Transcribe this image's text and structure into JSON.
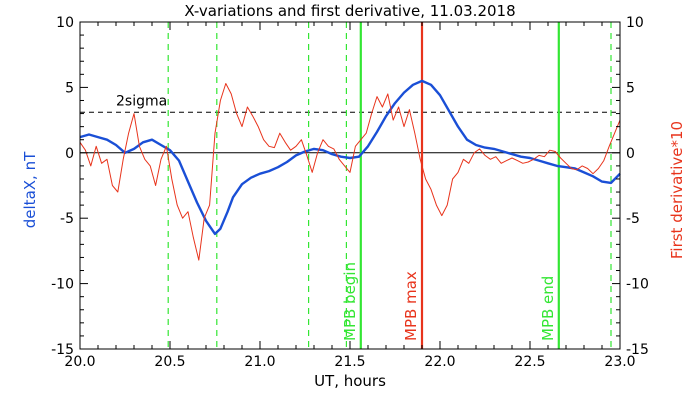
{
  "chart_data": {
    "type": "line",
    "title": "X-variations and first derivative, 11.03.2018",
    "xlabel": "UT, hours",
    "ylabel_left": "deltaX, nT",
    "ylabel_right": "First derivative*10",
    "xlim": [
      20.0,
      23.0
    ],
    "ylim": [
      -15,
      10
    ],
    "x_ticks": [
      20.0,
      20.5,
      21.0,
      21.5,
      22.0,
      22.5,
      23.0
    ],
    "x_tick_labels": [
      "20.0",
      "20.5",
      "21.0",
      "21.5",
      "22.0",
      "22.5",
      "23.0"
    ],
    "y_ticks": [
      10,
      5,
      0,
      -5,
      -10,
      -15
    ],
    "y_tick_labels": [
      "10",
      "5",
      "0",
      "-5",
      "-10",
      "-15"
    ],
    "grid": false,
    "colors": {
      "deltaX": "#1a4fd6",
      "derivative": "#e8341c",
      "green": "#33e633",
      "red": "#e8341c",
      "axes": "#000000"
    },
    "sigma_level": 3.1,
    "sigma_label": "2sigma",
    "vertical_markers": [
      {
        "x": 21.56,
        "label": "MPB begin",
        "color": "#33e633"
      },
      {
        "x": 21.9,
        "label": "MPB max",
        "color": "#e8341c"
      },
      {
        "x": 22.66,
        "label": "MPB end",
        "color": "#33e633"
      }
    ],
    "dashed_markers": [
      20.49,
      20.76,
      21.27,
      21.48,
      22.95
    ],
    "series": [
      {
        "key": "deltaX",
        "x": [
          20.0,
          20.05,
          20.1,
          20.15,
          20.2,
          20.25,
          20.3,
          20.35,
          20.4,
          20.45,
          20.5,
          20.55,
          20.6,
          20.65,
          20.7,
          20.75,
          20.78,
          20.82,
          20.85,
          20.9,
          20.95,
          21.0,
          21.05,
          21.1,
          21.15,
          21.2,
          21.25,
          21.3,
          21.35,
          21.4,
          21.45,
          21.5,
          21.55,
          21.6,
          21.65,
          21.7,
          21.75,
          21.8,
          21.85,
          21.9,
          21.95,
          22.0,
          22.05,
          22.1,
          22.15,
          22.2,
          22.25,
          22.3,
          22.35,
          22.4,
          22.45,
          22.5,
          22.55,
          22.6,
          22.65,
          22.7,
          22.75,
          22.8,
          22.85,
          22.9,
          22.95,
          23.0
        ],
        "values": [
          1.2,
          1.4,
          1.2,
          1.0,
          0.6,
          0.0,
          0.3,
          0.8,
          1.0,
          0.6,
          0.2,
          -0.6,
          -2.2,
          -3.8,
          -5.2,
          -6.2,
          -5.8,
          -4.5,
          -3.4,
          -2.4,
          -1.9,
          -1.6,
          -1.4,
          -1.1,
          -0.7,
          -0.2,
          0.1,
          0.3,
          0.2,
          -0.1,
          -0.3,
          -0.4,
          -0.3,
          0.5,
          1.6,
          2.8,
          3.8,
          4.6,
          5.2,
          5.5,
          5.2,
          4.4,
          3.2,
          2.0,
          1.0,
          0.6,
          0.4,
          0.3,
          0.1,
          -0.1,
          -0.3,
          -0.4,
          -0.6,
          -0.8,
          -1.0,
          -1.1,
          -1.2,
          -1.5,
          -1.8,
          -2.2,
          -2.3,
          -1.6
        ]
      },
      {
        "key": "derivative",
        "x": [
          20.0,
          20.03,
          20.06,
          20.09,
          20.12,
          20.15,
          20.18,
          20.21,
          20.24,
          20.27,
          20.3,
          20.33,
          20.36,
          20.39,
          20.42,
          20.45,
          20.48,
          20.51,
          20.54,
          20.57,
          20.6,
          20.63,
          20.66,
          20.69,
          20.72,
          20.75,
          20.78,
          20.81,
          20.84,
          20.87,
          20.9,
          20.93,
          20.96,
          20.99,
          21.02,
          21.05,
          21.08,
          21.11,
          21.14,
          21.17,
          21.2,
          21.23,
          21.26,
          21.29,
          21.32,
          21.35,
          21.38,
          21.41,
          21.44,
          21.47,
          21.5,
          21.53,
          21.56,
          21.59,
          21.62,
          21.65,
          21.68,
          21.71,
          21.74,
          21.77,
          21.8,
          21.83,
          21.86,
          21.89,
          21.92,
          21.95,
          21.98,
          22.01,
          22.04,
          22.07,
          22.1,
          22.13,
          22.16,
          22.19,
          22.22,
          22.25,
          22.28,
          22.31,
          22.34,
          22.37,
          22.4,
          22.43,
          22.46,
          22.49,
          22.52,
          22.55,
          22.58,
          22.61,
          22.64,
          22.67,
          22.7,
          22.73,
          22.76,
          22.79,
          22.82,
          22.85,
          22.88,
          22.91,
          22.94,
          22.97,
          23.0
        ],
        "values": [
          0.8,
          0.2,
          -1.0,
          0.5,
          -0.8,
          -0.5,
          -2.5,
          -3.0,
          -0.5,
          1.5,
          3.0,
          0.5,
          -0.5,
          -1.0,
          -2.5,
          -0.5,
          0.5,
          -2.0,
          -4.0,
          -5.0,
          -4.5,
          -6.5,
          -8.2,
          -5.0,
          -4.0,
          1.5,
          4.0,
          5.3,
          4.5,
          3.0,
          2.0,
          3.5,
          2.8,
          2.0,
          1.0,
          0.5,
          0.4,
          1.5,
          0.8,
          0.2,
          0.5,
          1.0,
          -0.2,
          -1.5,
          0.0,
          1.0,
          0.5,
          0.3,
          -0.5,
          -1.0,
          -1.5,
          0.5,
          1.0,
          1.5,
          3.0,
          4.3,
          3.5,
          4.5,
          2.5,
          3.5,
          2.0,
          3.3,
          1.5,
          -0.5,
          -2.0,
          -2.8,
          -4.0,
          -4.8,
          -4.0,
          -2.0,
          -1.5,
          -0.5,
          -0.8,
          0.0,
          0.3,
          -0.2,
          -0.5,
          -0.3,
          -0.8,
          -0.6,
          -0.4,
          -0.6,
          -0.8,
          -0.7,
          -0.5,
          -0.2,
          -0.3,
          0.2,
          0.1,
          -0.4,
          -0.8,
          -1.2,
          -1.3,
          -1.0,
          -1.2,
          -1.6,
          -1.2,
          -0.6,
          0.5,
          1.5,
          2.5
        ]
      }
    ]
  }
}
